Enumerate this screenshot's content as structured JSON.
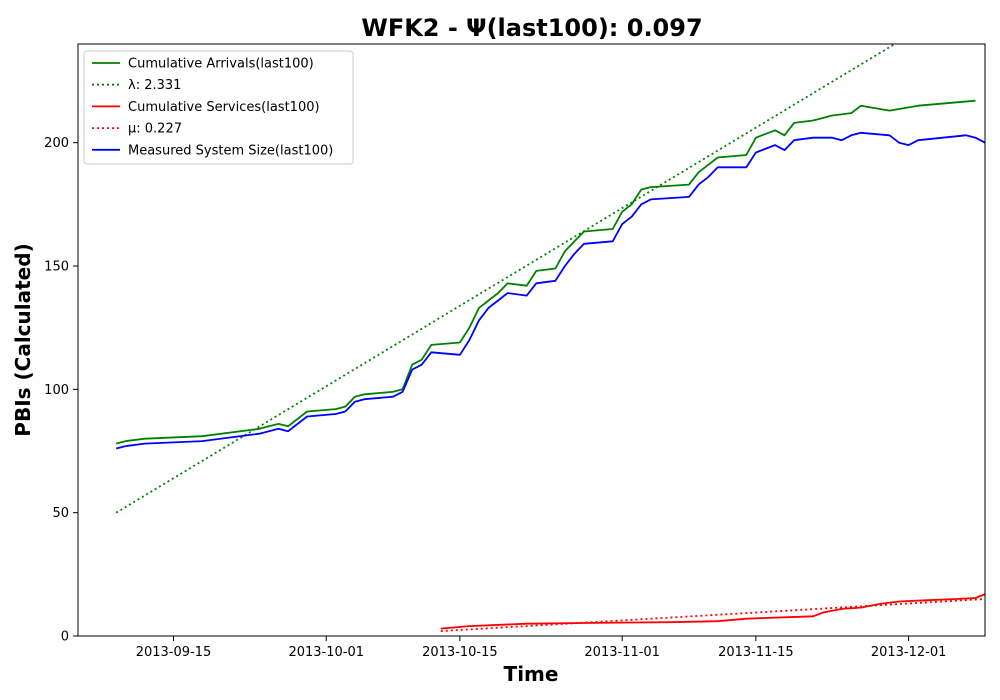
{
  "chart_data": {
    "type": "line",
    "title": "WFK2 -  Ψ(last100): 0.097",
    "xlabel": "Time",
    "ylabel": "PBIs (Calculated)",
    "xlim": [
      "2013-09-05",
      "2013-12-09"
    ],
    "ylim": [
      0,
      240
    ],
    "x_ticks": [
      "2013-09-15",
      "2013-10-01",
      "2013-10-15",
      "2013-11-01",
      "2013-11-15",
      "2013-12-01"
    ],
    "y_ticks": [
      0,
      50,
      100,
      150,
      200
    ],
    "grid": false,
    "legend_position": "top-left",
    "series": [
      {
        "name": "Cumulative Arrivals(last100)",
        "color": "#008000",
        "style": "solid",
        "points": [
          [
            "2013-09-09",
            78
          ],
          [
            "2013-09-10",
            79
          ],
          [
            "2013-09-12",
            80
          ],
          [
            "2013-09-18",
            81
          ],
          [
            "2013-09-24",
            84
          ],
          [
            "2013-09-25",
            85
          ],
          [
            "2013-09-26",
            86
          ],
          [
            "2013-09-27",
            85
          ],
          [
            "2013-09-28",
            88
          ],
          [
            "2013-09-29",
            91
          ],
          [
            "2013-10-02",
            92
          ],
          [
            "2013-10-03",
            93
          ],
          [
            "2013-10-04",
            97
          ],
          [
            "2013-10-05",
            98
          ],
          [
            "2013-10-08",
            99
          ],
          [
            "2013-10-09",
            100
          ],
          [
            "2013-10-10",
            110
          ],
          [
            "2013-10-11",
            112
          ],
          [
            "2013-10-12",
            118
          ],
          [
            "2013-10-15",
            119
          ],
          [
            "2013-10-16",
            125
          ],
          [
            "2013-10-17",
            133
          ],
          [
            "2013-10-18",
            136
          ],
          [
            "2013-10-19",
            139
          ],
          [
            "2013-10-20",
            143
          ],
          [
            "2013-10-22",
            142
          ],
          [
            "2013-10-23",
            148
          ],
          [
            "2013-10-25",
            149
          ],
          [
            "2013-10-26",
            156
          ],
          [
            "2013-10-27",
            160
          ],
          [
            "2013-10-28",
            164
          ],
          [
            "2013-10-31",
            165
          ],
          [
            "2013-11-01",
            172
          ],
          [
            "2013-11-02",
            175
          ],
          [
            "2013-11-03",
            181
          ],
          [
            "2013-11-04",
            182
          ],
          [
            "2013-11-08",
            183
          ],
          [
            "2013-11-09",
            188
          ],
          [
            "2013-11-10",
            191
          ],
          [
            "2013-11-11",
            194
          ],
          [
            "2013-11-14",
            195
          ],
          [
            "2013-11-15",
            202
          ],
          [
            "2013-11-17",
            205
          ],
          [
            "2013-11-18",
            203
          ],
          [
            "2013-11-19",
            208
          ],
          [
            "2013-11-21",
            209
          ],
          [
            "2013-11-23",
            211
          ],
          [
            "2013-11-25",
            212
          ],
          [
            "2013-11-26",
            215
          ],
          [
            "2013-11-29",
            213
          ],
          [
            "2013-12-02",
            215
          ],
          [
            "2013-12-08",
            217
          ]
        ]
      },
      {
        "name": "λ: 2.331",
        "color": "#008000",
        "style": "dotted",
        "points": [
          [
            "2013-09-09",
            50
          ],
          [
            "2013-12-09",
            262
          ]
        ]
      },
      {
        "name": "Cumulative Services(last100)",
        "color": "#ff0000",
        "style": "solid",
        "points": [
          [
            "2013-10-13",
            3
          ],
          [
            "2013-10-16",
            4
          ],
          [
            "2013-10-22",
            5
          ],
          [
            "2013-10-29",
            5.3
          ],
          [
            "2013-11-06",
            5.6
          ],
          [
            "2013-11-11",
            6
          ],
          [
            "2013-11-14",
            7
          ],
          [
            "2013-11-18",
            7.6
          ],
          [
            "2013-11-21",
            8
          ],
          [
            "2013-11-22",
            9.5
          ],
          [
            "2013-11-24",
            11
          ],
          [
            "2013-11-26",
            11.5
          ],
          [
            "2013-11-28",
            13
          ],
          [
            "2013-11-30",
            14
          ],
          [
            "2013-12-03",
            14.5
          ],
          [
            "2013-12-06",
            15
          ],
          [
            "2013-12-08",
            15.4
          ],
          [
            "2013-12-09",
            17
          ]
        ]
      },
      {
        "name": "μ: 0.227",
        "color": "#ff0000",
        "style": "dotted",
        "points": [
          [
            "2013-10-13",
            2
          ],
          [
            "2013-12-09",
            15
          ]
        ]
      },
      {
        "name": "Measured System Size(last100)",
        "color": "#0000ff",
        "style": "solid",
        "points": [
          [
            "2013-09-09",
            76
          ],
          [
            "2013-09-10",
            77
          ],
          [
            "2013-09-12",
            78
          ],
          [
            "2013-09-18",
            79
          ],
          [
            "2013-09-24",
            82
          ],
          [
            "2013-09-25",
            83
          ],
          [
            "2013-09-26",
            84
          ],
          [
            "2013-09-27",
            83
          ],
          [
            "2013-09-28",
            86
          ],
          [
            "2013-09-29",
            89
          ],
          [
            "2013-10-02",
            90
          ],
          [
            "2013-10-03",
            91
          ],
          [
            "2013-10-04",
            95
          ],
          [
            "2013-10-05",
            96
          ],
          [
            "2013-10-08",
            97
          ],
          [
            "2013-10-09",
            99
          ],
          [
            "2013-10-10",
            108
          ],
          [
            "2013-10-11",
            110
          ],
          [
            "2013-10-12",
            115
          ],
          [
            "2013-10-15",
            114
          ],
          [
            "2013-10-16",
            120
          ],
          [
            "2013-10-17",
            128
          ],
          [
            "2013-10-18",
            133
          ],
          [
            "2013-10-19",
            136
          ],
          [
            "2013-10-20",
            139
          ],
          [
            "2013-10-22",
            138
          ],
          [
            "2013-10-23",
            143
          ],
          [
            "2013-10-25",
            144
          ],
          [
            "2013-10-26",
            150
          ],
          [
            "2013-10-27",
            155
          ],
          [
            "2013-10-28",
            159
          ],
          [
            "2013-10-31",
            160
          ],
          [
            "2013-11-01",
            167
          ],
          [
            "2013-11-02",
            170
          ],
          [
            "2013-11-03",
            175
          ],
          [
            "2013-11-04",
            177
          ],
          [
            "2013-11-08",
            178
          ],
          [
            "2013-11-09",
            183
          ],
          [
            "2013-11-10",
            186
          ],
          [
            "2013-11-11",
            190
          ],
          [
            "2013-11-14",
            190
          ],
          [
            "2013-11-15",
            196
          ],
          [
            "2013-11-17",
            199
          ],
          [
            "2013-11-18",
            197
          ],
          [
            "2013-11-19",
            201
          ],
          [
            "2013-11-21",
            202
          ],
          [
            "2013-11-23",
            202
          ],
          [
            "2013-11-24",
            201
          ],
          [
            "2013-11-25",
            203
          ],
          [
            "2013-11-26",
            204
          ],
          [
            "2013-11-29",
            203
          ],
          [
            "2013-11-30",
            200
          ],
          [
            "2013-12-01",
            199
          ],
          [
            "2013-12-02",
            201
          ],
          [
            "2013-12-07",
            203
          ],
          [
            "2013-12-08",
            202
          ],
          [
            "2013-12-09",
            200
          ]
        ]
      }
    ]
  }
}
